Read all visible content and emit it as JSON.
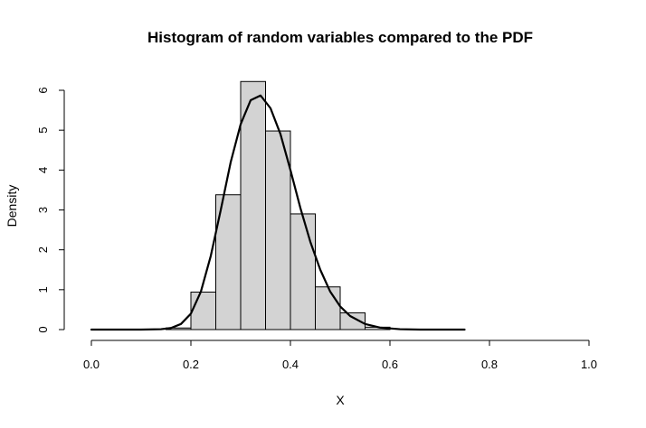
{
  "chart_data": {
    "type": "histogram",
    "title": "Histogram of random variables compared to the PDF",
    "xlabel": "X",
    "ylabel": "Density",
    "xlim": [
      0,
      1
    ],
    "ylim": [
      0,
      6.2
    ],
    "x_ticks": [
      "0.0",
      "0.2",
      "0.4",
      "0.6",
      "0.8",
      "1.0"
    ],
    "y_ticks": [
      "0",
      "1",
      "2",
      "3",
      "4",
      "5",
      "6"
    ],
    "grid": false,
    "legend": "none",
    "bar_fill": "#d3d3d3",
    "bar_stroke": "#000000",
    "curve_color": "#000000",
    "bins": [
      {
        "x0": 0.15,
        "x1": 0.2,
        "density": 0.04
      },
      {
        "x0": 0.2,
        "x1": 0.25,
        "density": 0.94
      },
      {
        "x0": 0.25,
        "x1": 0.3,
        "density": 3.38
      },
      {
        "x0": 0.3,
        "x1": 0.35,
        "density": 6.22
      },
      {
        "x0": 0.35,
        "x1": 0.4,
        "density": 4.98
      },
      {
        "x0": 0.4,
        "x1": 0.45,
        "density": 2.9
      },
      {
        "x0": 0.45,
        "x1": 0.5,
        "density": 1.07
      },
      {
        "x0": 0.5,
        "x1": 0.55,
        "density": 0.42
      },
      {
        "x0": 0.55,
        "x1": 0.6,
        "density": 0.06
      }
    ],
    "pdf_curve": {
      "x": [
        0.0,
        0.05,
        0.1,
        0.14,
        0.16,
        0.18,
        0.2,
        0.22,
        0.24,
        0.26,
        0.28,
        0.3,
        0.32,
        0.34,
        0.36,
        0.38,
        0.4,
        0.42,
        0.44,
        0.46,
        0.48,
        0.5,
        0.52,
        0.55,
        0.58,
        0.62,
        0.66,
        0.7,
        0.75
      ],
      "y": [
        0.0,
        0.0,
        0.0,
        0.01,
        0.04,
        0.14,
        0.4,
        0.95,
        1.85,
        3.0,
        4.2,
        5.15,
        5.75,
        5.87,
        5.55,
        4.9,
        4.0,
        3.05,
        2.2,
        1.5,
        0.95,
        0.58,
        0.34,
        0.14,
        0.05,
        0.01,
        0.0,
        0.0,
        0.0
      ]
    }
  }
}
